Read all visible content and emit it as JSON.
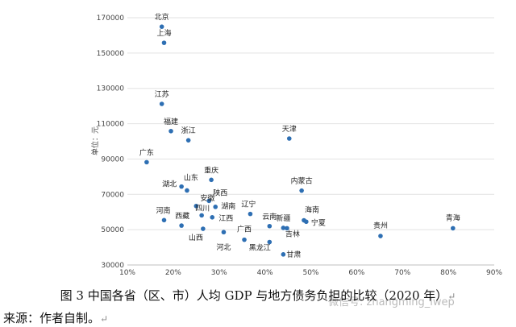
{
  "chart_data": {
    "type": "scatter",
    "ylabel": "单位：元",
    "ylim": [
      30000,
      170000
    ],
    "yticks": [
      30000,
      50000,
      70000,
      90000,
      110000,
      130000,
      150000,
      170000
    ],
    "xlim": [
      0.1,
      0.9
    ],
    "xticks": [
      "10%",
      "20%",
      "30%",
      "40%",
      "50%",
      "60%",
      "70%",
      "80%",
      "90%"
    ],
    "color": "#2e6fb3",
    "points": [
      {
        "name": "北京",
        "x": 0.175,
        "y": 164900
      },
      {
        "name": "上海",
        "x": 0.18,
        "y": 155800
      },
      {
        "name": "江苏",
        "x": 0.175,
        "y": 121200
      },
      {
        "name": "福建",
        "x": 0.195,
        "y": 105800
      },
      {
        "name": "浙江",
        "x": 0.233,
        "y": 100600
      },
      {
        "name": "天津",
        "x": 0.453,
        "y": 101600
      },
      {
        "name": "广东",
        "x": 0.142,
        "y": 88200
      },
      {
        "name": "山东",
        "x": 0.23,
        "y": 72200
      },
      {
        "name": "重庆",
        "x": 0.283,
        "y": 78200
      },
      {
        "name": "湖北",
        "x": 0.218,
        "y": 74400
      },
      {
        "name": "安徽",
        "x": 0.25,
        "y": 63400
      },
      {
        "name": "陕西",
        "x": 0.278,
        "y": 66300
      },
      {
        "name": "湖南",
        "x": 0.292,
        "y": 62900
      },
      {
        "name": "四川",
        "x": 0.262,
        "y": 58100
      },
      {
        "name": "内蒙古",
        "x": 0.48,
        "y": 72100
      },
      {
        "name": "河南",
        "x": 0.18,
        "y": 55400
      },
      {
        "name": "西藏",
        "x": 0.218,
        "y": 52300
      },
      {
        "name": "江西",
        "x": 0.285,
        "y": 57000
      },
      {
        "name": "辽宁",
        "x": 0.368,
        "y": 58900
      },
      {
        "name": "云南",
        "x": 0.41,
        "y": 52000
      },
      {
        "name": "新疆",
        "x": 0.44,
        "y": 51000
      },
      {
        "name": "海南",
        "x": 0.485,
        "y": 55300
      },
      {
        "name": "宁夏",
        "x": 0.49,
        "y": 54500
      },
      {
        "name": "山西",
        "x": 0.265,
        "y": 50500
      },
      {
        "name": "广西",
        "x": 0.355,
        "y": 44300
      },
      {
        "name": "河北",
        "x": 0.31,
        "y": 48600
      },
      {
        "name": "吉林",
        "x": 0.448,
        "y": 50800
      },
      {
        "name": "黑龙江",
        "x": 0.41,
        "y": 43000
      },
      {
        "name": "甘肃",
        "x": 0.44,
        "y": 36000
      },
      {
        "name": "贵州",
        "x": 0.652,
        "y": 46400
      },
      {
        "name": "青海",
        "x": 0.81,
        "y": 50800
      }
    ]
  },
  "caption": {
    "text": "图 3   中国各省（区、市）人均 GDP 与地方债务负担的比较（2020 年）",
    "return_mark": "↵"
  },
  "source": {
    "text": "来源：作者自制。",
    "return_mark": "↵"
  },
  "watermark": "微信号: zhangming_lwep"
}
